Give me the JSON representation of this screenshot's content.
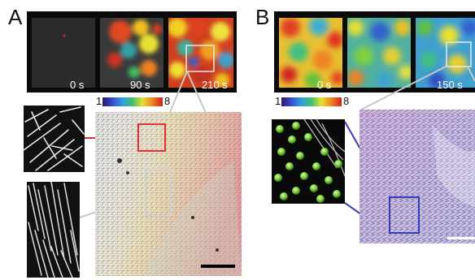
{
  "panels": {
    "A": {
      "letter": "A",
      "times": [
        "0 s",
        "90 s",
        "210 s"
      ],
      "colorbar": {
        "min": "1",
        "max": "8"
      }
    },
    "B": {
      "letter": "B",
      "times": [
        "0 s",
        "150 s"
      ],
      "colorbar": {
        "min": "1",
        "max": "8"
      }
    }
  },
  "colors": {
    "zoom_red": "#e2312b",
    "zoom_grey": "#c8c8c8",
    "zoom_blue": "#3a3ab8",
    "bead_green": "#7ccd3e"
  }
}
